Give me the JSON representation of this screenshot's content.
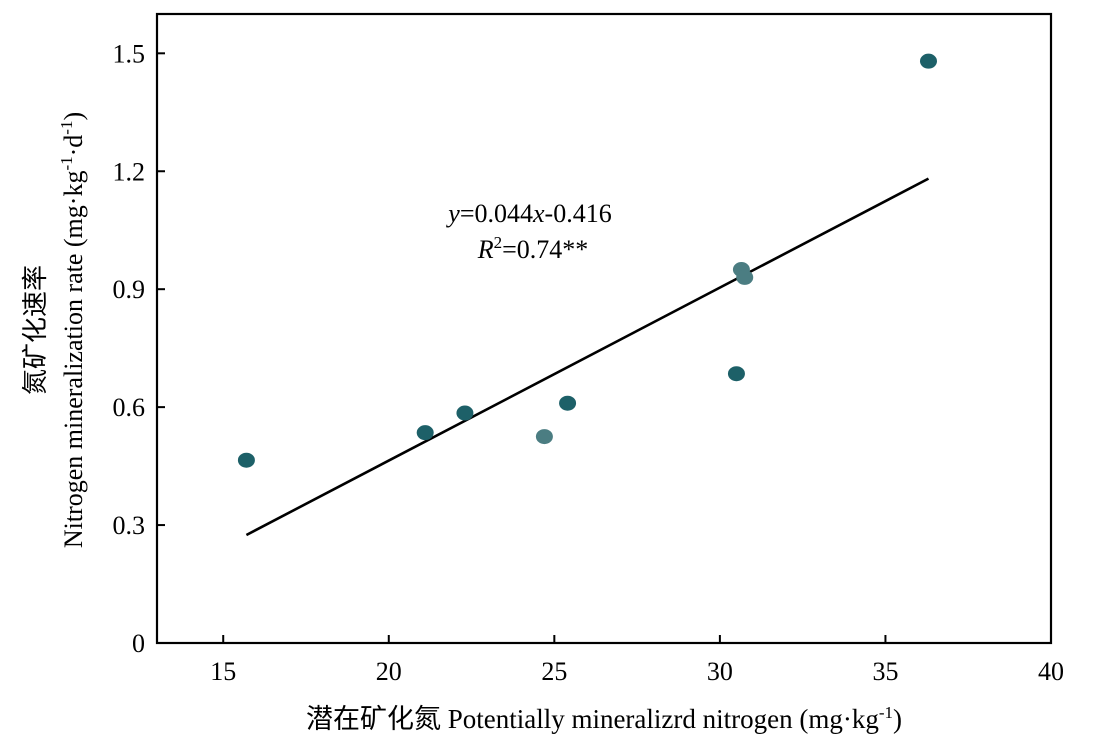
{
  "chart_data": {
    "type": "scatter",
    "title": "",
    "xlabel": "潜在矿化氮 Potentially mineralizrd nitrogen (mg·kg",
    "xlabel_sup": "-1",
    "xlabel_end": ")",
    "ylabel_cn": "氮矿化速率",
    "ylabel_en": "Nitrogen mineralization rate (mg·kg",
    "ylabel_sup1": "-1",
    "ylabel_mid": "·d",
    "ylabel_sup2": "-1",
    "ylabel_end": ")",
    "xlim": [
      13,
      40
    ],
    "ylim": [
      0,
      1.6
    ],
    "xticks": [
      15,
      20,
      25,
      30,
      35,
      40
    ],
    "yticks": [
      0,
      0.3,
      0.6,
      0.9,
      1.2,
      1.5
    ],
    "xtick_labels": [
      "15",
      "20",
      "25",
      "30",
      "35",
      "40"
    ],
    "ytick_labels": [
      "0",
      "0.3",
      "0.6",
      "0.9",
      "1.2",
      "1.5"
    ],
    "points": [
      {
        "x": 15.7,
        "y": 0.465
      },
      {
        "x": 21.1,
        "y": 0.535
      },
      {
        "x": 22.3,
        "y": 0.585
      },
      {
        "x": 24.7,
        "y": 0.525
      },
      {
        "x": 25.4,
        "y": 0.61
      },
      {
        "x": 30.5,
        "y": 0.685
      },
      {
        "x": 30.65,
        "y": 0.95
      },
      {
        "x": 30.75,
        "y": 0.93
      },
      {
        "x": 36.3,
        "y": 1.48
      }
    ],
    "point_colors": [
      "#1d6068",
      "#1d6068",
      "#1d6068",
      "#4b7d82",
      "#1d6068",
      "#1d6068",
      "#4b7d82",
      "#4b7d82",
      "#1d6068"
    ],
    "fit": {
      "slope": 0.044,
      "intercept": -0.416,
      "x_range": [
        15.7,
        36.3
      ],
      "color": "#000000"
    },
    "annotation": {
      "eq_y": "y",
      "eq_body": "=0.044",
      "eq_x": "x",
      "eq_tail": "-0.416",
      "r_R": "R",
      "r_sup": "2",
      "r_tail": "=0.74**"
    },
    "grid": false,
    "legend": "none"
  }
}
